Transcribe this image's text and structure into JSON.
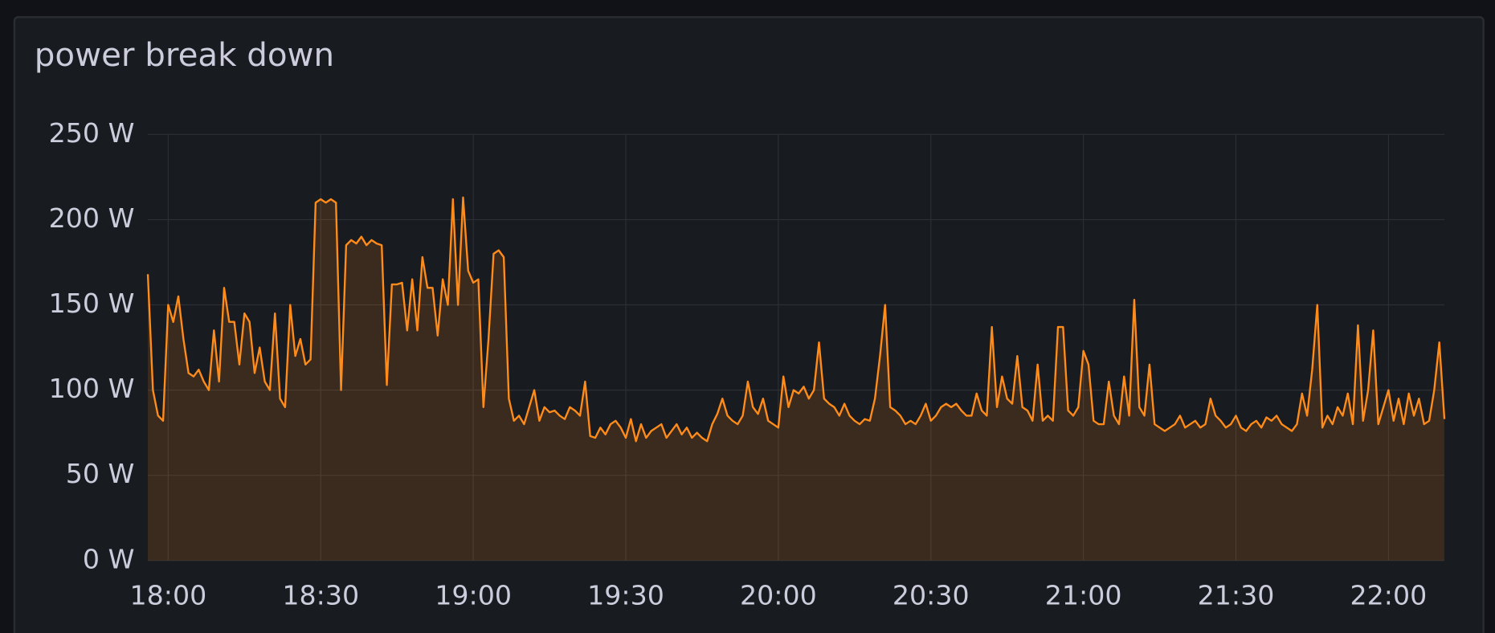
{
  "chart_data": {
    "type": "line",
    "title": "power break down",
    "x": [
      "17:56",
      "17:57",
      "17:58",
      "17:59",
      "18:00",
      "18:01",
      "18:02",
      "18:03",
      "18:04",
      "18:05",
      "18:06",
      "18:07",
      "18:08",
      "18:09",
      "18:10",
      "18:11",
      "18:12",
      "18:13",
      "18:14",
      "18:15",
      "18:16",
      "18:17",
      "18:18",
      "18:19",
      "18:20",
      "18:21",
      "18:22",
      "18:23",
      "18:24",
      "18:25",
      "18:26",
      "18:27",
      "18:28",
      "18:29",
      "18:30",
      "18:31",
      "18:32",
      "18:33",
      "18:34",
      "18:35",
      "18:36",
      "18:37",
      "18:38",
      "18:39",
      "18:40",
      "18:41",
      "18:42",
      "18:43",
      "18:44",
      "18:45",
      "18:46",
      "18:47",
      "18:48",
      "18:49",
      "18:50",
      "18:51",
      "18:52",
      "18:53",
      "18:54",
      "18:55",
      "18:56",
      "18:57",
      "18:58",
      "18:59",
      "19:00",
      "19:01",
      "19:02",
      "19:03",
      "19:04",
      "19:05",
      "19:06",
      "19:07",
      "19:08",
      "19:09",
      "19:10",
      "19:11",
      "19:12",
      "19:13",
      "19:14",
      "19:15",
      "19:16",
      "19:17",
      "19:18",
      "19:19",
      "19:20",
      "19:21",
      "19:22",
      "19:23",
      "19:24",
      "19:25",
      "19:26",
      "19:27",
      "19:28",
      "19:29",
      "19:30",
      "19:31",
      "19:32",
      "19:33",
      "19:34",
      "19:35",
      "19:36",
      "19:37",
      "19:38",
      "19:39",
      "19:40",
      "19:41",
      "19:42",
      "19:43",
      "19:44",
      "19:45",
      "19:46",
      "19:47",
      "19:48",
      "19:49",
      "19:50",
      "19:51",
      "19:52",
      "19:53",
      "19:54",
      "19:55",
      "19:56",
      "19:57",
      "19:58",
      "19:59",
      "20:00",
      "20:01",
      "20:02",
      "20:03",
      "20:04",
      "20:05",
      "20:06",
      "20:07",
      "20:08",
      "20:09",
      "20:10",
      "20:11",
      "20:12",
      "20:13",
      "20:14",
      "20:15",
      "20:16",
      "20:17",
      "20:18",
      "20:19",
      "20:20",
      "20:21",
      "20:22",
      "20:23",
      "20:24",
      "20:25",
      "20:26",
      "20:27",
      "20:28",
      "20:29",
      "20:30",
      "20:31",
      "20:32",
      "20:33",
      "20:34",
      "20:35",
      "20:36",
      "20:37",
      "20:38",
      "20:39",
      "20:40",
      "20:41",
      "20:42",
      "20:43",
      "20:44",
      "20:45",
      "20:46",
      "20:47",
      "20:48",
      "20:49",
      "20:50",
      "20:51",
      "20:52",
      "20:53",
      "20:54",
      "20:55",
      "20:56",
      "20:57",
      "20:58",
      "20:59",
      "21:00",
      "21:01",
      "21:02",
      "21:03",
      "21:04",
      "21:05",
      "21:06",
      "21:07",
      "21:08",
      "21:09",
      "21:10",
      "21:11",
      "21:12",
      "21:13",
      "21:14",
      "21:15",
      "21:16",
      "21:17",
      "21:18",
      "21:19",
      "21:20",
      "21:21",
      "21:22",
      "21:23",
      "21:24",
      "21:25",
      "21:26",
      "21:27",
      "21:28",
      "21:29",
      "21:30",
      "21:31",
      "21:32",
      "21:33",
      "21:34",
      "21:35",
      "21:36",
      "21:37",
      "21:38",
      "21:39",
      "21:40",
      "21:41",
      "21:42",
      "21:43",
      "21:44",
      "21:45",
      "21:46",
      "21:47",
      "21:48",
      "21:49",
      "21:50",
      "21:51",
      "21:52",
      "21:53",
      "21:54",
      "21:55",
      "21:56",
      "21:57",
      "21:58",
      "21:59",
      "22:00",
      "22:01",
      "22:02",
      "22:03",
      "22:04",
      "22:05",
      "22:06",
      "22:07",
      "22:08",
      "22:09",
      "22:10",
      "22:11"
    ],
    "values": [
      168,
      100,
      85,
      82,
      150,
      140,
      155,
      130,
      110,
      108,
      112,
      105,
      100,
      135,
      105,
      160,
      140,
      140,
      115,
      145,
      140,
      110,
      125,
      105,
      100,
      145,
      95,
      90,
      150,
      120,
      130,
      115,
      118,
      210,
      212,
      210,
      212,
      210,
      100,
      185,
      188,
      186,
      190,
      185,
      188,
      186,
      185,
      103,
      162,
      162,
      163,
      135,
      165,
      135,
      178,
      160,
      160,
      132,
      165,
      150,
      212,
      150,
      213,
      170,
      163,
      165,
      90,
      130,
      180,
      182,
      178,
      95,
      82,
      85,
      80,
      90,
      100,
      82,
      90,
      87,
      88,
      85,
      83,
      90,
      88,
      85,
      105,
      73,
      72,
      78,
      74,
      80,
      82,
      78,
      72,
      83,
      70,
      80,
      72,
      76,
      78,
      80,
      72,
      76,
      80,
      74,
      78,
      72,
      75,
      72,
      70,
      80,
      86,
      95,
      85,
      82,
      80,
      85,
      105,
      90,
      86,
      95,
      82,
      80,
      78,
      108,
      90,
      100,
      98,
      102,
      95,
      100,
      128,
      95,
      92,
      90,
      85,
      92,
      85,
      82,
      80,
      83,
      82,
      95,
      120,
      150,
      90,
      88,
      85,
      80,
      82,
      80,
      85,
      92,
      82,
      85,
      90,
      92,
      90,
      92,
      88,
      85,
      85,
      98,
      88,
      85,
      137,
      90,
      108,
      95,
      92,
      120,
      90,
      88,
      82,
      115,
      82,
      85,
      82,
      137,
      137,
      88,
      85,
      90,
      123,
      115,
      82,
      80,
      80,
      105,
      85,
      80,
      108,
      85,
      153,
      90,
      85,
      115,
      80,
      78,
      76,
      78,
      80,
      85,
      78,
      80,
      82,
      78,
      80,
      95,
      85,
      82,
      78,
      80,
      85,
      78,
      76,
      80,
      82,
      78,
      84,
      82,
      85,
      80,
      78,
      76,
      80,
      98,
      85,
      112,
      150,
      78,
      85,
      80,
      90,
      85,
      98,
      80,
      138,
      82,
      100,
      135,
      80,
      90,
      100,
      82,
      95,
      80,
      98,
      85,
      95,
      80,
      82,
      100,
      128,
      83
    ],
    "color": "#ff8c1a",
    "xlim": [
      "17:56",
      "22:11"
    ],
    "xticks": [
      "18:00",
      "18:30",
      "19:00",
      "19:30",
      "20:00",
      "20:30",
      "21:00",
      "21:30",
      "22:00"
    ],
    "ylim": [
      0,
      250
    ],
    "yticks": [
      {
        "value": 0,
        "label": "0 W"
      },
      {
        "value": 50,
        "label": "50 W"
      },
      {
        "value": 100,
        "label": "100 W"
      },
      {
        "value": 150,
        "label": "150 W"
      },
      {
        "value": 200,
        "label": "200 W"
      },
      {
        "value": 250,
        "label": "250 W"
      }
    ],
    "grid": true,
    "fill": true
  }
}
